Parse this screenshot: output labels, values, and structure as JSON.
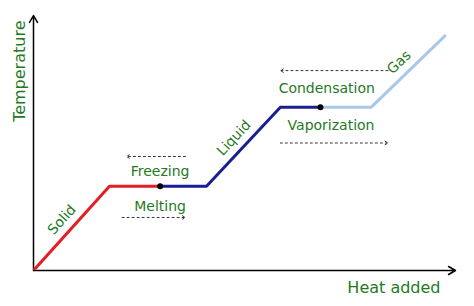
{
  "chart_data": {
    "type": "line",
    "x_label": "Heat added",
    "y_label": "Temperature",
    "xlim": [
      0,
      100
    ],
    "ylim": [
      0,
      100
    ],
    "xticks": [],
    "yticks": [],
    "tick_labels": false,
    "grid": false,
    "series": [
      {
        "name": "Solid",
        "color": "#e31e24",
        "x": [
          0,
          18,
          30
        ],
        "values": [
          0,
          33,
          33
        ]
      },
      {
        "name": "Liquid",
        "color": "#1a1f8f",
        "x": [
          30,
          41,
          58.5,
          68
        ],
        "values": [
          33,
          33,
          64,
          64
        ]
      },
      {
        "name": "Gas",
        "color": "#a9c8e8",
        "x": [
          68,
          80,
          97.5
        ],
        "values": [
          64,
          64,
          92
        ]
      }
    ],
    "points": {
      "x": [
        30,
        68
      ],
      "values": [
        33,
        64
      ]
    },
    "annotations": [
      {
        "text": "Freezing",
        "x": 30,
        "y": 39,
        "arrow_x": [
          36,
          22
        ],
        "arrow_y": 44.7
      },
      {
        "text": "Melting",
        "x": 30,
        "y": 25,
        "arrow_x": [
          21,
          36
        ],
        "arrow_y": 20.8
      },
      {
        "text": "Condensation",
        "x": 69.5,
        "y": 71.4,
        "arrow_x": [
          84,
          58.5
        ],
        "arrow_y": 78.4
      },
      {
        "text": "Vaporization",
        "x": 70.5,
        "y": 56.9,
        "arrow_x": [
          58.5,
          84
        ],
        "arrow_y": 50
      }
    ]
  }
}
